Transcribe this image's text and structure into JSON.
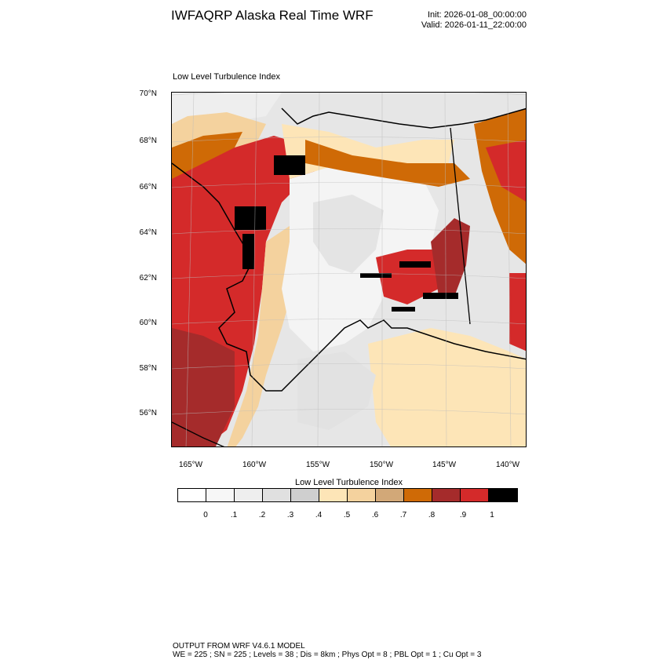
{
  "header": {
    "title": "IWFAQRP Alaska Real Time WRF",
    "init": "Init: 2026-01-08_00:00:00",
    "valid": "Valid: 2026-01-11_22:00:00"
  },
  "panel": {
    "title": "Low Level Turbulence Index"
  },
  "map": {
    "lat_labels": [
      "70°N",
      "68°N",
      "66°N",
      "64°N",
      "62°N",
      "60°N",
      "58°N",
      "56°N"
    ],
    "lon_labels": [
      "165°W",
      "160°W",
      "155°W",
      "150°W",
      "145°W",
      "140°W"
    ]
  },
  "colorbar": {
    "title": "Low Level Turbulence Index",
    "labels": [
      "0",
      ".1",
      ".2",
      ".3",
      ".4",
      ".5",
      ".6",
      ".7",
      ".8",
      ".9",
      "1"
    ],
    "colors": [
      "#ffffff",
      "#f7f7f7",
      "#eeeeee",
      "#e0e0e0",
      "#cfcfcf",
      "#fde5b7",
      "#f4d29e",
      "#d2a878",
      "#cf6a06",
      "#a52b2b",
      "#d42a2a",
      "#000000"
    ]
  },
  "footer": {
    "line1": "OUTPUT FROM WRF V4.6.1 MODEL",
    "line2": "WE = 225 ; SN = 225 ; Levels = 38 ; Dis = 8km ; Phys Opt = 8 ; PBL Opt = 1 ; Cu Opt = 3"
  }
}
